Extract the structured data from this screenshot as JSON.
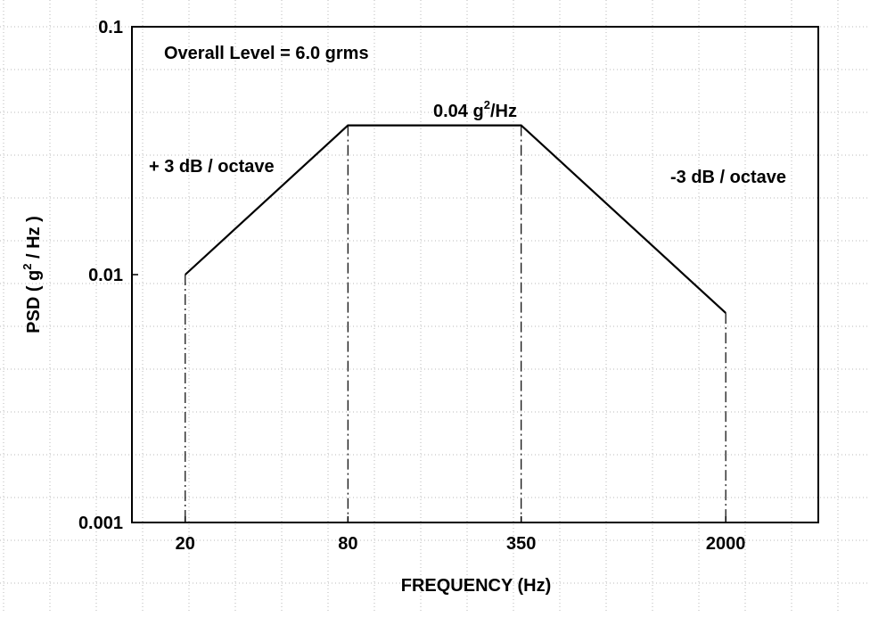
{
  "chart_data": {
    "type": "line",
    "title": "",
    "xlabel": "FREQUENCY (Hz)",
    "ylabel_prefix": "PSD ( g",
    "ylabel_sup": "2",
    "ylabel_suffix": " / Hz )",
    "x_scale": "log",
    "y_scale": "log",
    "ylim": [
      0.001,
      0.1
    ],
    "xlim": [
      12.7,
      4400
    ],
    "x_ticks": [
      20,
      80,
      350,
      2000
    ],
    "x_tick_labels": [
      "20",
      "80",
      "350",
      "2000"
    ],
    "y_ticks": [
      0.001,
      0.01,
      0.1
    ],
    "y_tick_labels": [
      "0.001",
      "0.01",
      "0.1"
    ],
    "grid": true,
    "series": [
      {
        "x": [
          20,
          80,
          350,
          2000
        ],
        "y": [
          0.01,
          0.04,
          0.04,
          0.007
        ]
      }
    ],
    "reference_lines": [
      {
        "x": 20,
        "y_top": 0.01
      },
      {
        "x": 80,
        "y_top": 0.04
      },
      {
        "x": 350,
        "y_top": 0.04
      },
      {
        "x": 2000,
        "y_top": 0.007
      }
    ],
    "annotations": {
      "overall": "Overall Level = 6.0 grms",
      "plateau_prefix": "0.04 g",
      "plateau_sup": "2",
      "plateau_suffix": "/Hz",
      "rise": "+ 3 dB / octave",
      "fall": "-3 dB / octave"
    }
  }
}
